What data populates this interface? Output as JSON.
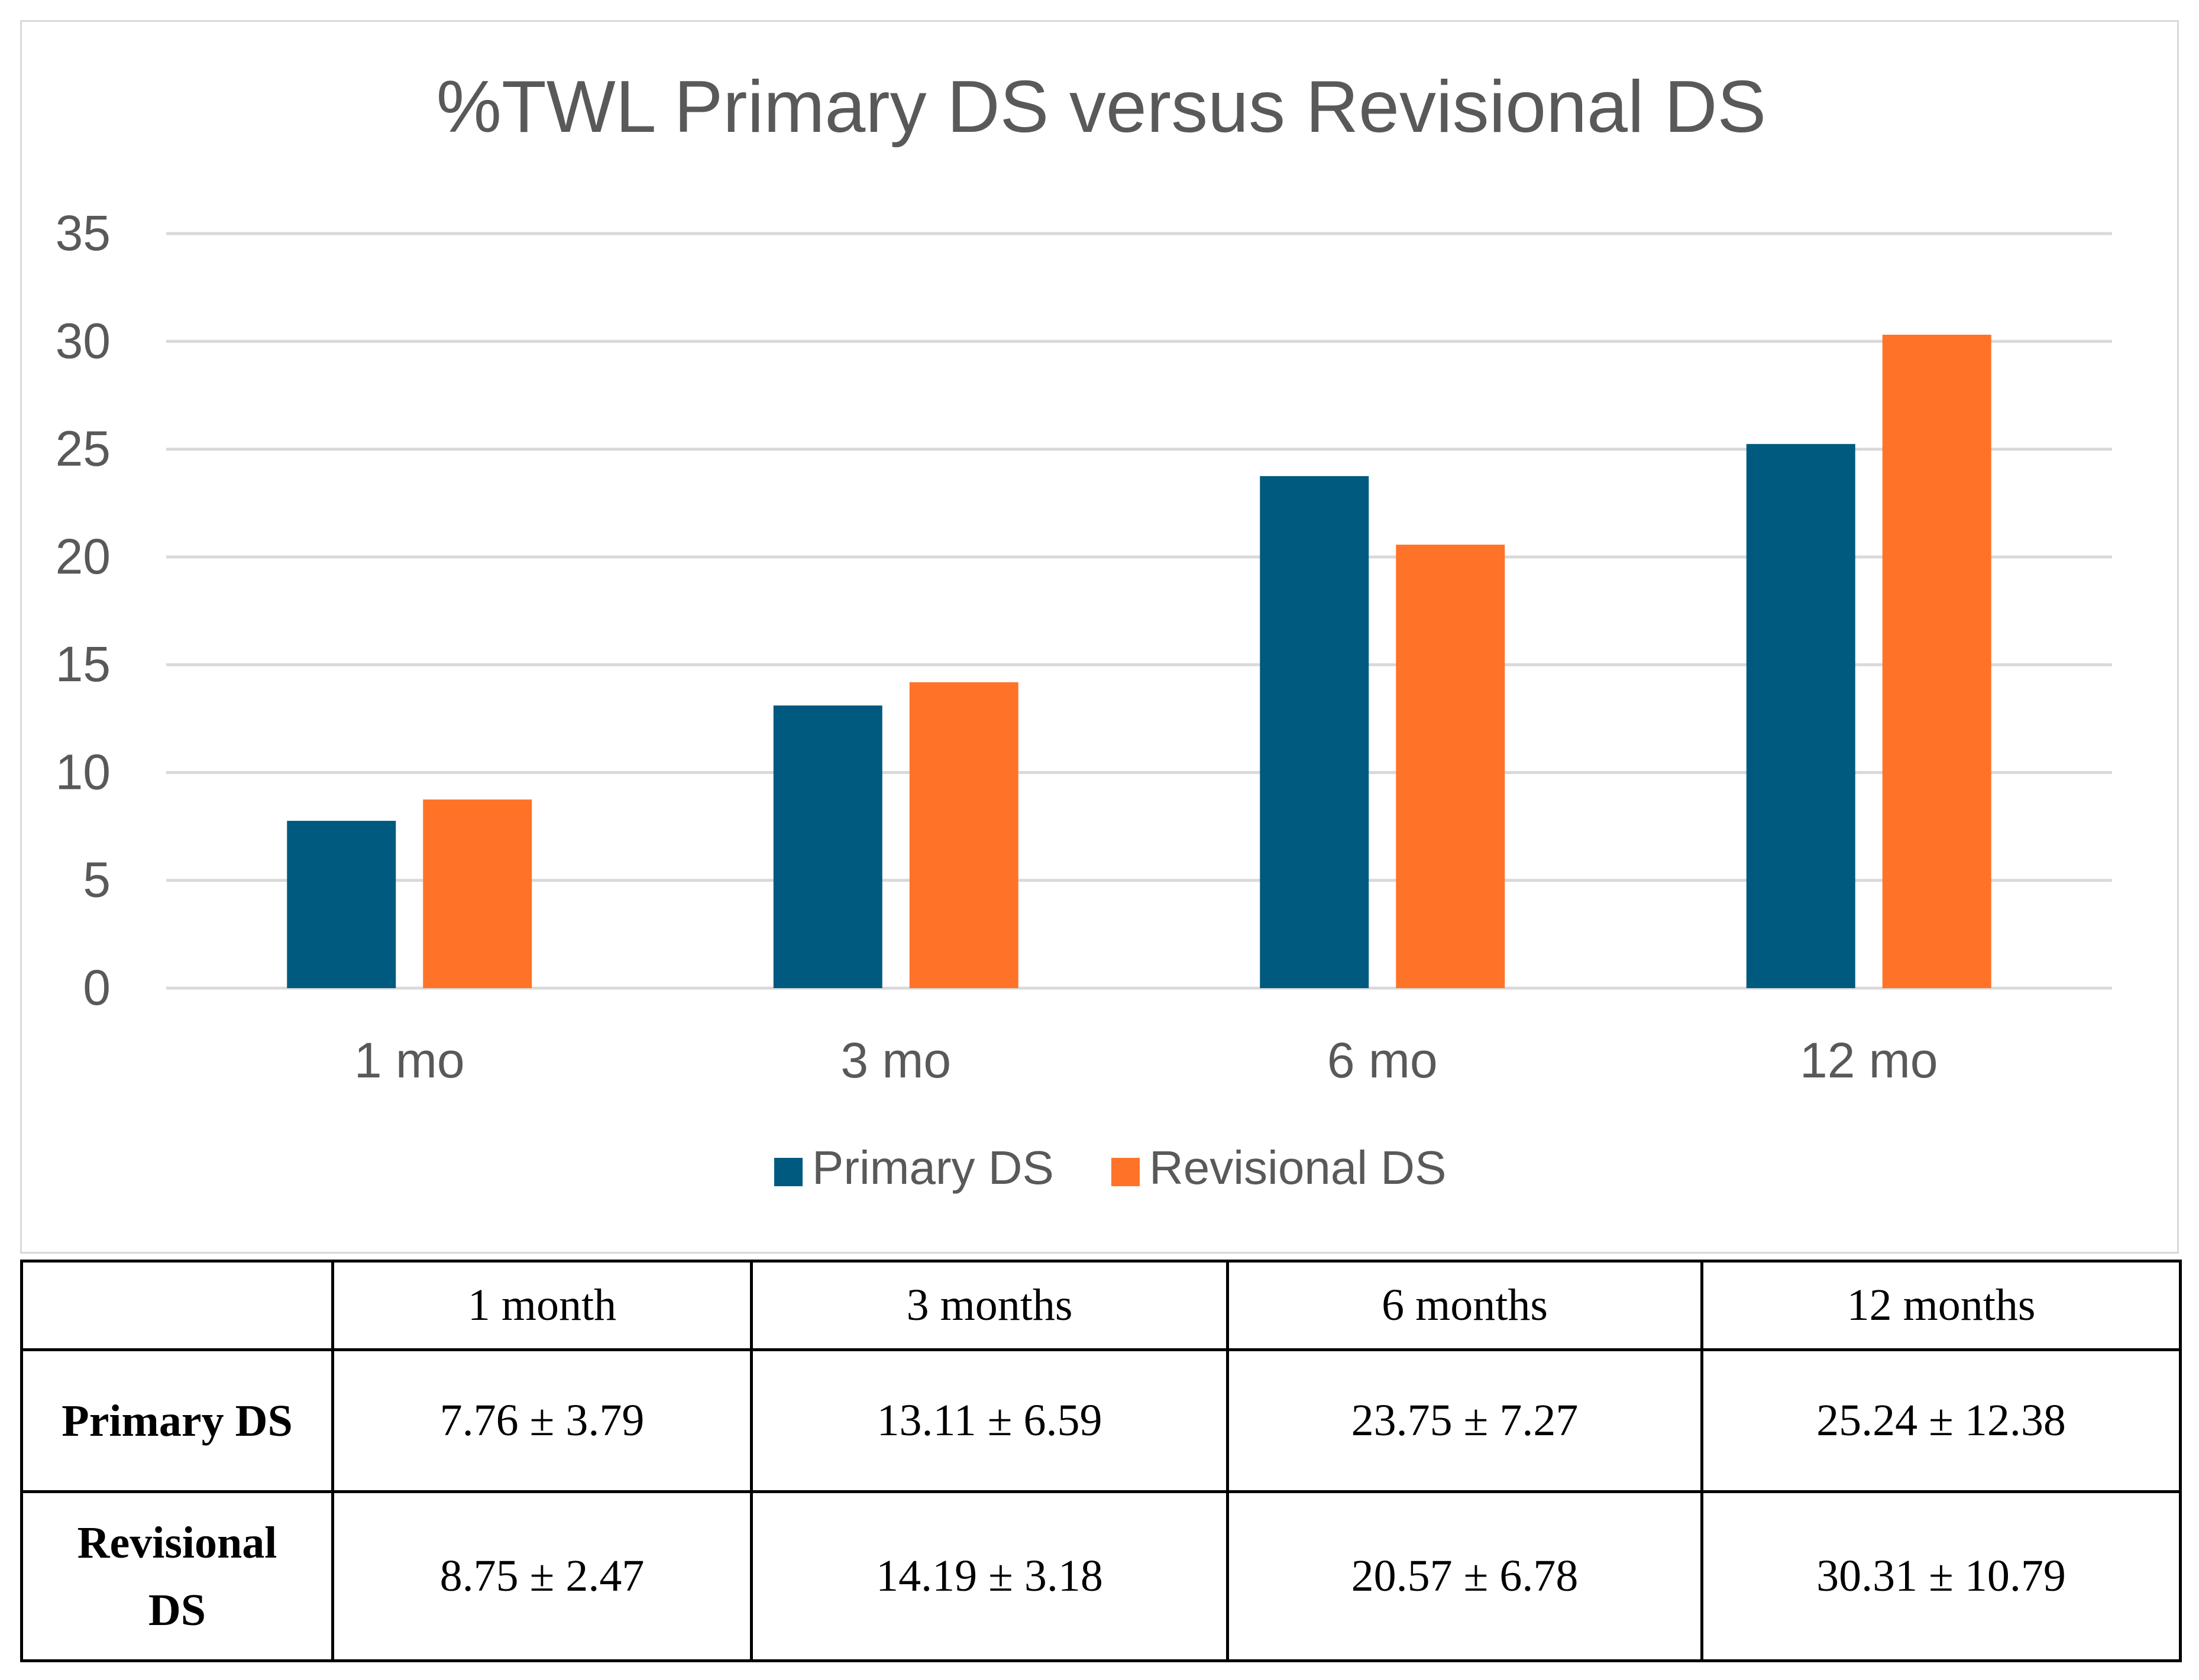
{
  "colors": {
    "primary": "#005a80",
    "revisional": "#ff7328",
    "grid": "#d9d9d9",
    "text": "#595959"
  },
  "chart_data": {
    "type": "bar",
    "title": "%TWL Primary DS versus Revisional DS",
    "categories": [
      "1 mo",
      "3 mo",
      "6 mo",
      "12 mo"
    ],
    "series": [
      {
        "name": "Primary DS",
        "values": [
          7.76,
          13.11,
          23.75,
          25.24
        ]
      },
      {
        "name": "Revisional DS",
        "values": [
          8.75,
          14.19,
          20.57,
          30.31
        ]
      }
    ],
    "yticks": [
      0,
      5,
      10,
      15,
      20,
      25,
      30,
      35
    ],
    "ylim": [
      0,
      35
    ],
    "xlabel": "",
    "ylabel": "",
    "grid": true,
    "legend_position": "bottom-center"
  },
  "table": {
    "headers": [
      "",
      "1 month",
      "3 months",
      "6 months",
      "12 months"
    ],
    "rows": [
      {
        "label": "Primary DS",
        "cells": [
          "7.76 ± 3.79",
          "13.11 ± 6.59",
          "23.75 ± 7.27",
          "25.24 ± 12.38"
        ]
      },
      {
        "label_lines": [
          "Revisional",
          "DS"
        ],
        "cells": [
          "8.75 ± 2.47",
          "14.19 ± 3.18",
          "20.57 ± 6.78",
          "30.31 ± 10.79"
        ]
      }
    ]
  }
}
